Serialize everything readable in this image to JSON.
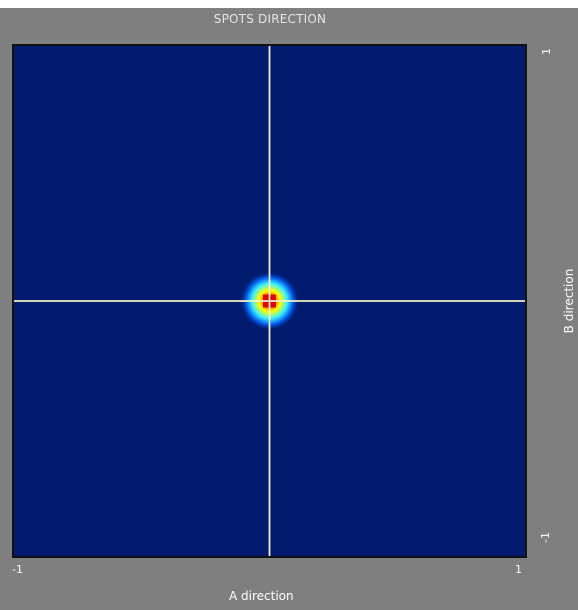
{
  "window": {
    "title": "SPOTS DIRECTION",
    "background": "#7f7f7f"
  },
  "chart_data": {
    "type": "heatmap",
    "title": "SPOTS DIRECTION",
    "xlabel": "A direction",
    "ylabel": "B direction",
    "xlim": [
      -1,
      1
    ],
    "ylim": [
      -1,
      1
    ],
    "x_ticks": [
      "-1",
      "1"
    ],
    "y_ticks": [
      "1",
      "-1"
    ],
    "grid": false,
    "crosshair": {
      "x": 0,
      "y": 0,
      "color": "#f2f2c8"
    },
    "spot": {
      "center_x": 0,
      "center_y": 0,
      "peak_color": "#e00000",
      "mid_color": "#ffff00",
      "outer_color": "#00d5ff",
      "background_color": "#001a6e"
    }
  }
}
